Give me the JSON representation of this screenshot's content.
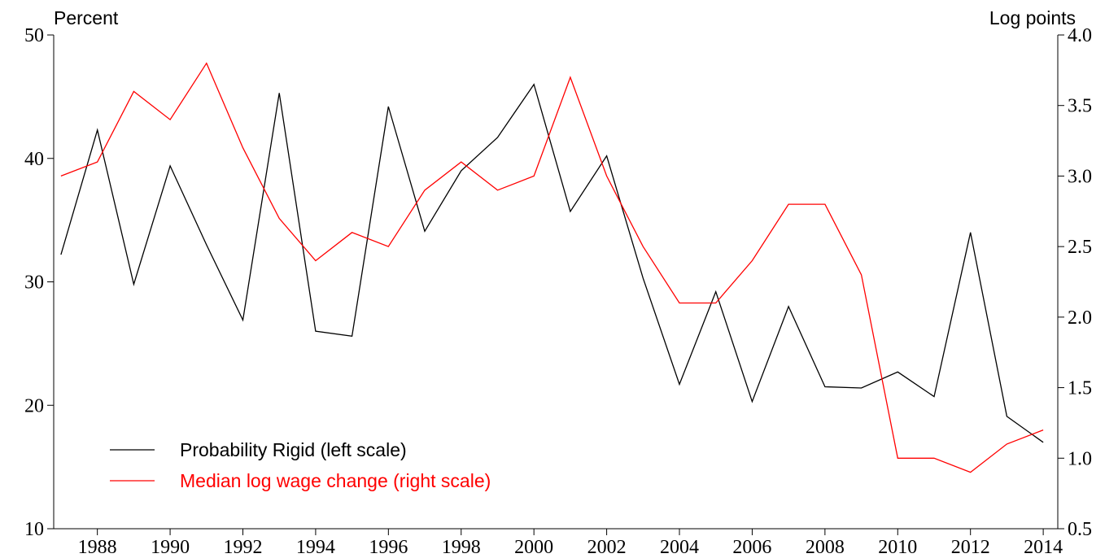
{
  "chart_data": {
    "type": "line",
    "ylabel": "Percent",
    "y2label": "Log points",
    "x": [
      1987,
      1988,
      1989,
      1990,
      1991,
      1992,
      1993,
      1994,
      1995,
      1996,
      1997,
      1998,
      1999,
      2000,
      2001,
      2002,
      2003,
      2004,
      2005,
      2006,
      2007,
      2008,
      2009,
      2010,
      2011,
      2012,
      2013,
      2014
    ],
    "series": [
      {
        "name": "Probability Rigid (left scale)",
        "color": "#000000",
        "axis": "y",
        "values": [
          32.2,
          42.3,
          29.8,
          39.4,
          33,
          26.9,
          45.3,
          26,
          25.6,
          44.2,
          34.1,
          39,
          41.7,
          46,
          35.7,
          40.2,
          30.3,
          21.7,
          29.2,
          20.3,
          28,
          21.5,
          21.4,
          22.7,
          20.7,
          34,
          19.1,
          17
        ]
      },
      {
        "name": "Median log wage change (right scale)",
        "color": "#ff0000",
        "axis": "y2",
        "values": [
          3.0,
          3.1,
          3.6,
          3.4,
          3.8,
          3.2,
          2.7,
          2.4,
          2.6,
          2.5,
          2.9,
          3.1,
          2.9,
          3.0,
          3.7,
          3.0,
          2.5,
          2.1,
          2.1,
          2.4,
          2.8,
          2.8,
          2.3,
          1.0,
          1.0,
          0.9,
          1.1,
          1.2
        ]
      }
    ],
    "xlim": [
      1986.8,
      2014.4
    ],
    "xticks": [
      1988,
      1990,
      1992,
      1994,
      1996,
      1998,
      2000,
      2002,
      2004,
      2006,
      2008,
      2010,
      2012,
      2014
    ],
    "ylim": [
      10,
      50
    ],
    "yticks": [
      10,
      20,
      30,
      40,
      50
    ],
    "y2lim": [
      0.5,
      4.0
    ],
    "y2ticks": [
      {
        "value": 0.5,
        "label": "0.5"
      },
      {
        "value": 1,
        "label": "1.0"
      },
      {
        "value": 1.5,
        "label": "1.5"
      },
      {
        "value": 2,
        "label": "2.0"
      },
      {
        "value": 2.5,
        "label": "2.5"
      },
      {
        "value": 3,
        "label": "3.0"
      },
      {
        "value": 3.5,
        "label": "3.5"
      },
      {
        "value": 4,
        "label": "4.0"
      }
    ],
    "legend": "lower-left"
  }
}
